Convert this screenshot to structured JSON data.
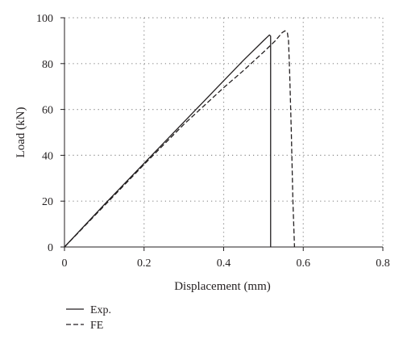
{
  "chart_data": {
    "type": "line",
    "title": "",
    "xlabel": "Displacement (mm)",
    "ylabel": "Load (kN)",
    "xlim": [
      0,
      0.8
    ],
    "ylim": [
      0,
      100
    ],
    "xticks": [
      0,
      0.2,
      0.4,
      0.6,
      0.8
    ],
    "xtick_labels": [
      "0",
      "0.2",
      "0.4",
      "0.6",
      "0.8"
    ],
    "yticks": [
      0,
      20,
      40,
      60,
      80,
      100
    ],
    "ytick_labels": [
      "0",
      "20",
      "40",
      "60",
      "80",
      "100"
    ],
    "grid": true,
    "legend_position": "bottom-left",
    "series": [
      {
        "name": "Exp.",
        "style": "solid",
        "color": "#231f20",
        "points": [
          [
            0,
            0
          ],
          [
            0.1,
            18.5
          ],
          [
            0.2,
            36.5
          ],
          [
            0.3,
            54.5
          ],
          [
            0.35,
            63.5
          ],
          [
            0.4,
            72.5
          ],
          [
            0.45,
            81.5
          ],
          [
            0.5,
            90
          ],
          [
            0.515,
            92.5
          ],
          [
            0.518,
            92
          ],
          [
            0.518,
            40
          ],
          [
            0.518,
            0
          ]
        ]
      },
      {
        "name": "FE",
        "style": "dashed",
        "color": "#231f20",
        "points": [
          [
            0,
            0
          ],
          [
            0.1,
            18
          ],
          [
            0.2,
            36
          ],
          [
            0.3,
            53.5
          ],
          [
            0.35,
            61.5
          ],
          [
            0.4,
            69.5
          ],
          [
            0.45,
            77
          ],
          [
            0.5,
            85
          ],
          [
            0.53,
            90
          ],
          [
            0.547,
            93.5
          ],
          [
            0.554,
            94.3
          ],
          [
            0.56,
            93.6
          ],
          [
            0.563,
            90
          ],
          [
            0.566,
            75
          ],
          [
            0.57,
            50
          ],
          [
            0.574,
            20
          ],
          [
            0.578,
            0
          ]
        ]
      }
    ]
  }
}
